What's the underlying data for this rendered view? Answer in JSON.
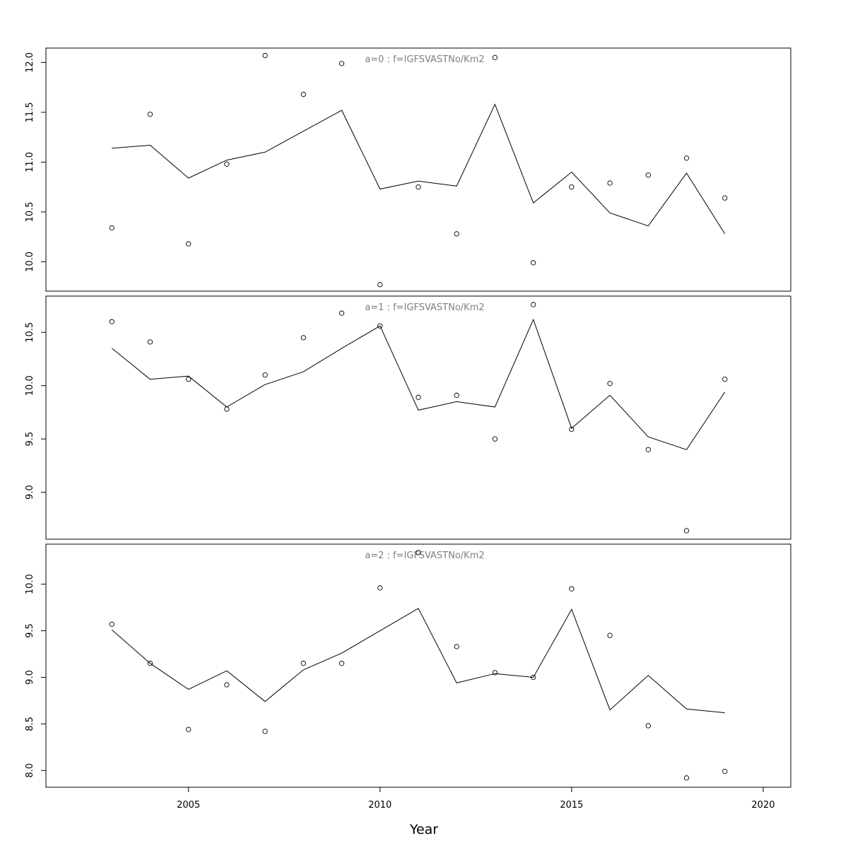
{
  "chart_data": [
    {
      "type": "scatter",
      "title": "a=0 : f=IGFSVASTNo/Km2",
      "x": [
        2003,
        2004,
        2005,
        2006,
        2007,
        2008,
        2009,
        2010,
        2011,
        2012,
        2013,
        2014,
        2015,
        2016,
        2017,
        2018,
        2019
      ],
      "series": [
        {
          "kind": "points",
          "values": [
            10.34,
            11.48,
            10.18,
            10.98,
            12.07,
            11.68,
            11.99,
            9.77,
            10.75,
            10.28,
            12.05,
            9.99,
            10.75,
            10.79,
            10.87,
            11.04,
            10.64
          ]
        },
        {
          "kind": "line",
          "values": [
            11.14,
            11.17,
            10.84,
            11.02,
            11.1,
            11.31,
            11.52,
            10.73,
            10.81,
            10.76,
            11.58,
            10.59,
            10.9,
            10.49,
            10.36,
            10.89,
            10.28
          ]
        }
      ],
      "yticks": [
        10.0,
        10.5,
        11.0,
        11.5,
        12.0
      ],
      "ylim": [
        9.705,
        12.145
      ],
      "xlim": [
        2001.28,
        2020.72
      ]
    },
    {
      "type": "scatter",
      "title": "a=1 : f=IGFSVASTNo/Km2",
      "x": [
        2003,
        2004,
        2005,
        2006,
        2007,
        2008,
        2009,
        2010,
        2011,
        2012,
        2013,
        2014,
        2015,
        2016,
        2017,
        2018,
        2019
      ],
      "series": [
        {
          "kind": "points",
          "values": [
            10.6,
            10.41,
            10.06,
            9.78,
            10.1,
            10.45,
            10.68,
            10.56,
            9.89,
            9.91,
            9.5,
            10.76,
            9.59,
            10.02,
            9.4,
            8.64,
            10.06
          ]
        },
        {
          "kind": "line",
          "values": [
            10.35,
            10.06,
            10.09,
            9.8,
            10.01,
            10.13,
            10.35,
            10.56,
            9.77,
            9.85,
            9.8,
            10.62,
            9.6,
            9.91,
            9.52,
            9.4,
            9.94
          ]
        }
      ],
      "yticks": [
        9.0,
        9.5,
        10.0,
        10.5
      ],
      "ylim": [
        8.56,
        10.84
      ],
      "xlim": [
        2001.28,
        2020.72
      ]
    },
    {
      "type": "scatter",
      "title": "a=2 : f=IGFSVASTNo/Km2",
      "x": [
        2003,
        2004,
        2005,
        2006,
        2007,
        2008,
        2009,
        2010,
        2011,
        2012,
        2013,
        2014,
        2015,
        2016,
        2017,
        2018,
        2019
      ],
      "series": [
        {
          "kind": "points",
          "values": [
            9.57,
            9.15,
            8.44,
            8.92,
            8.42,
            9.15,
            9.15,
            9.96,
            10.34,
            9.33,
            9.05,
            9.0,
            9.95,
            9.45,
            8.48,
            7.92,
            7.99
          ]
        },
        {
          "kind": "line",
          "values": [
            9.51,
            9.15,
            8.87,
            9.07,
            8.74,
            9.08,
            9.26,
            9.5,
            9.74,
            8.94,
            9.04,
            9.0,
            9.73,
            8.65,
            9.02,
            8.66,
            8.62
          ]
        }
      ],
      "yticks": [
        8.0,
        8.5,
        9.0,
        9.5,
        10.0
      ],
      "ylim": [
        7.82,
        10.43
      ],
      "xlim": [
        2001.28,
        2020.72
      ]
    }
  ],
  "xaxis": {
    "label": "Year",
    "ticks": [
      2005,
      2010,
      2015,
      2020
    ]
  }
}
